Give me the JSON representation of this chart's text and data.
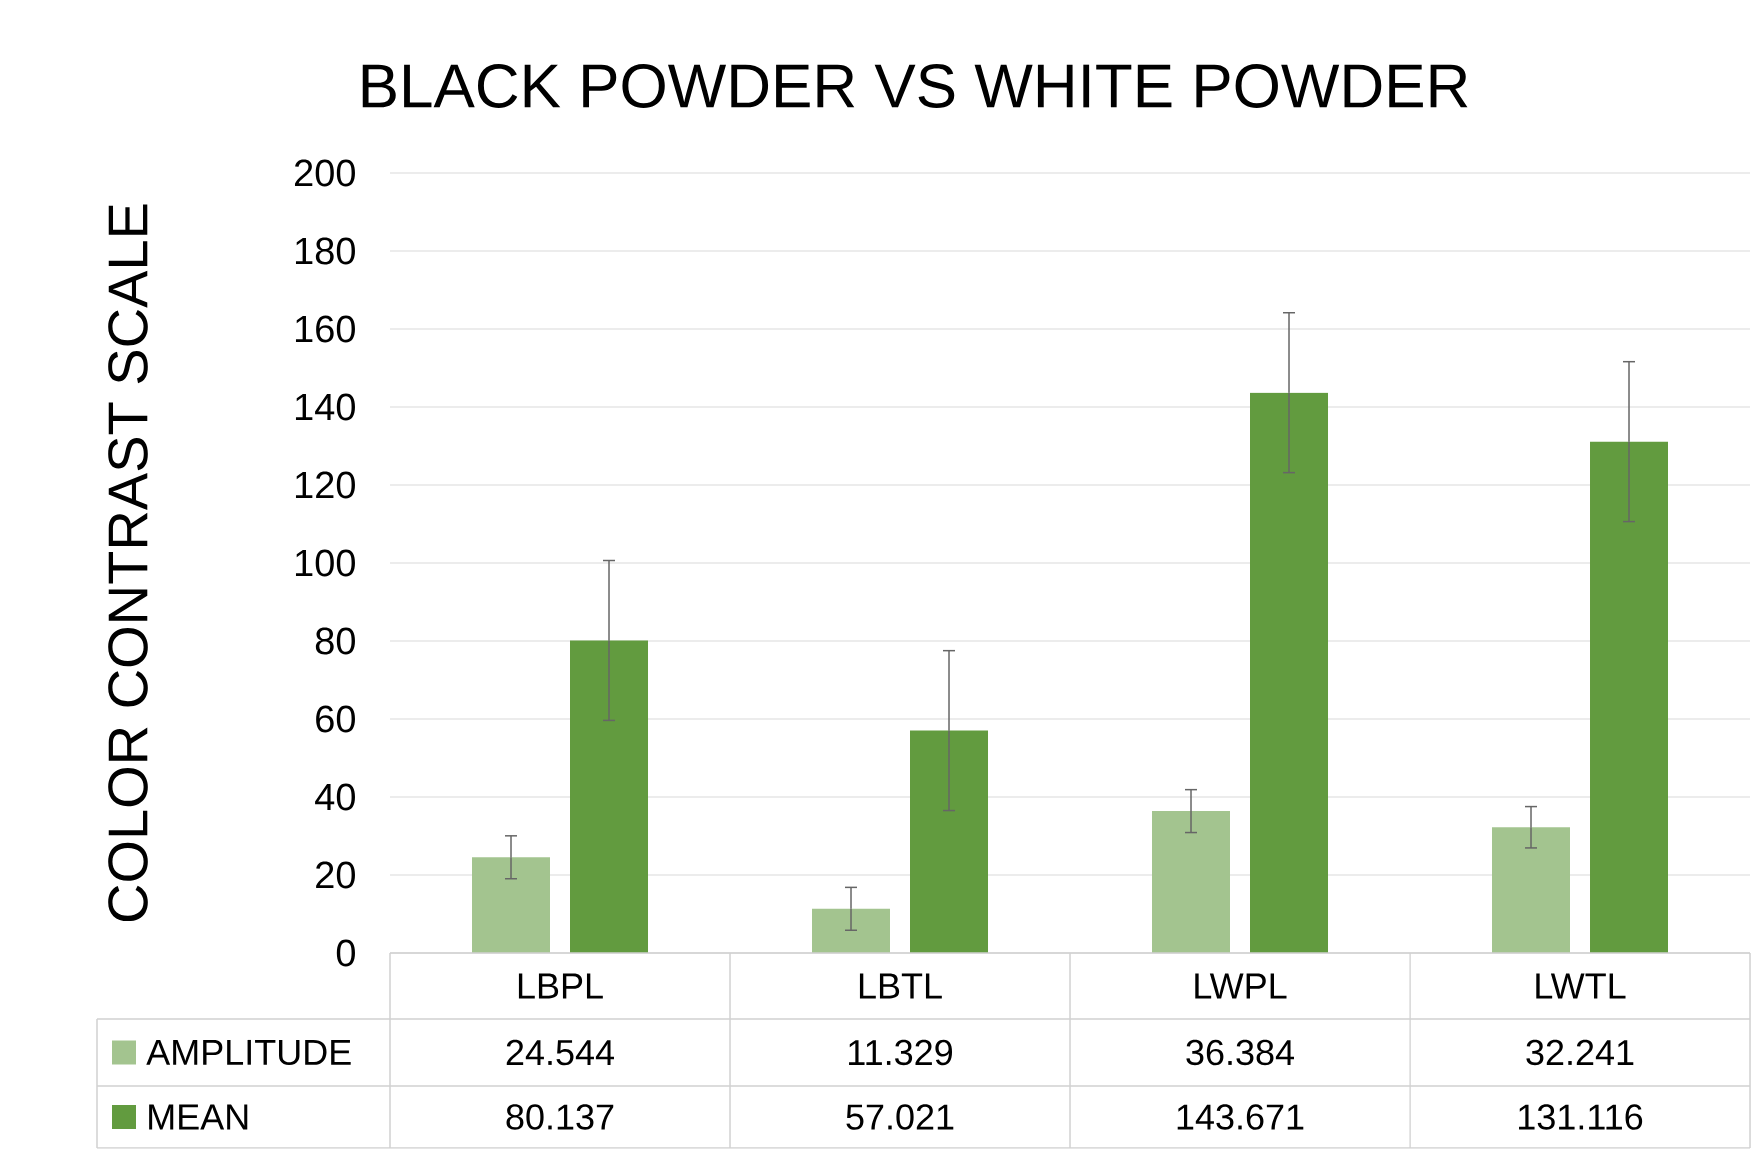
{
  "chart_data": {
    "type": "bar",
    "title": "BLACK POWDER VS WHITE POWDER",
    "ylabel": "COLOR CONTRAST SCALE",
    "categories": [
      "LBPL",
      "LBTL",
      "LWPL",
      "LWTL"
    ],
    "series": [
      {
        "name": "AMPLITUDE",
        "color": "#a3c48f",
        "values": [
          24.544,
          11.329,
          36.384,
          32.241
        ],
        "errors": [
          5.5,
          5.5,
          5.5,
          5.3
        ]
      },
      {
        "name": "MEAN",
        "color": "#629b3f",
        "values": [
          80.137,
          57.021,
          143.671,
          131.116
        ],
        "errors": [
          20.5,
          20.5,
          20.5,
          20.5
        ]
      }
    ],
    "ylim": [
      0,
      200
    ],
    "yticks": [
      0,
      20,
      40,
      60,
      80,
      100,
      120,
      140,
      160,
      180,
      200
    ],
    "grid": "y",
    "data_labels": true,
    "legend": "bottom"
  }
}
